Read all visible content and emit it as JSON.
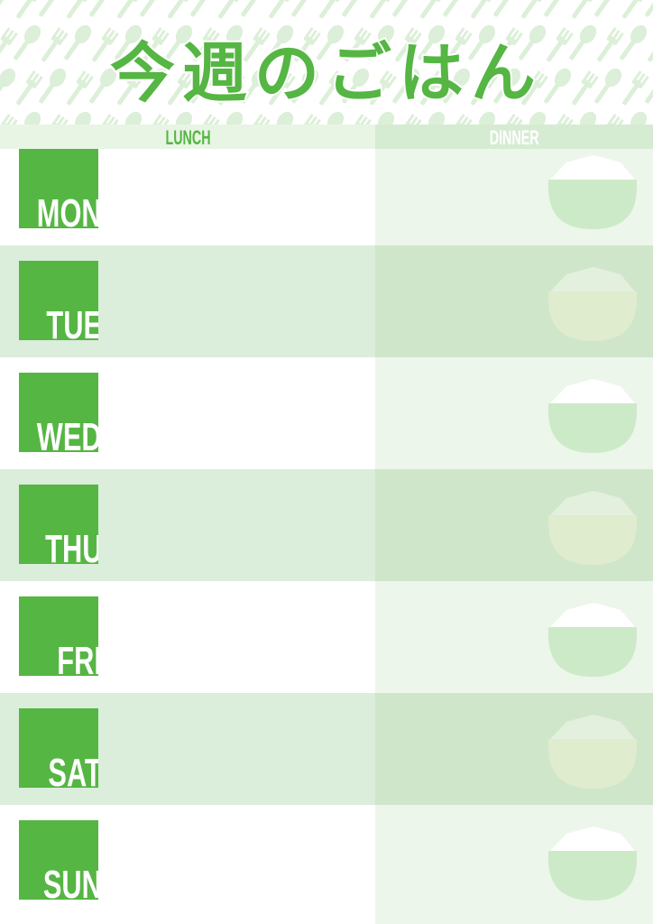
{
  "title": "今週のごはん",
  "columns": {
    "lunch": "LUNCH",
    "dinner": "DINNER"
  },
  "days": [
    "MON",
    "TUE",
    "WED",
    "THU",
    "FRI",
    "SAT",
    "SUN"
  ],
  "colors": {
    "accent": "#55b643",
    "pattern": "#dcefd8"
  }
}
